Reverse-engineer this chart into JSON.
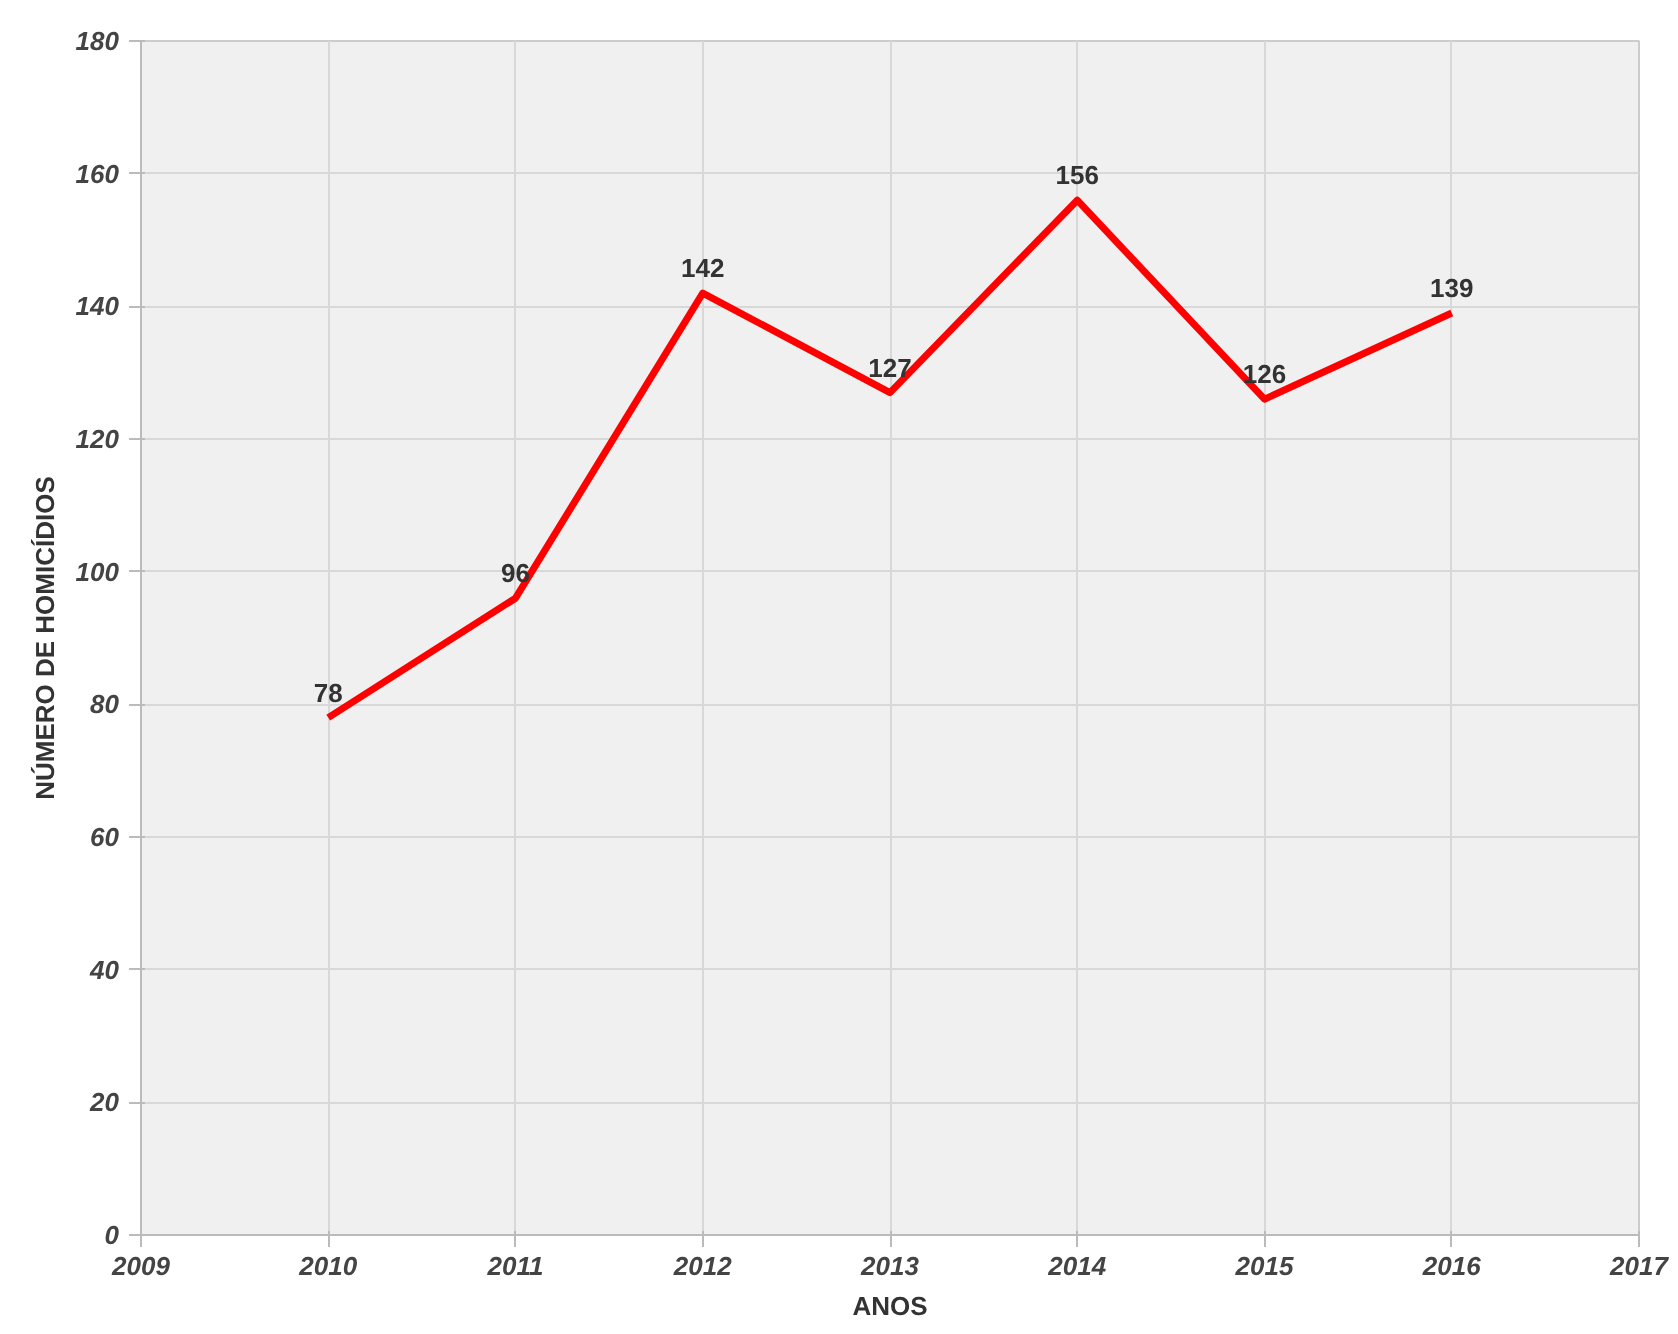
{
  "chart_data": {
    "type": "line",
    "xlabel": "ANOS",
    "ylabel": "NÚMERO DE HOMICÍDIOS",
    "x": [
      2010,
      2011,
      2012,
      2013,
      2014,
      2015,
      2016
    ],
    "series": [
      {
        "color": "#ff0000",
        "values": [
          78,
          96,
          142,
          127,
          156,
          126,
          139
        ]
      }
    ],
    "xlim": [
      2009,
      2017
    ],
    "xticks": [
      2009,
      2010,
      2011,
      2012,
      2013,
      2014,
      2015,
      2016,
      2017
    ],
    "ylim": [
      0,
      180
    ],
    "yticks": [
      0,
      20,
      40,
      60,
      80,
      100,
      120,
      140,
      160,
      180
    ],
    "grid": true,
    "data_labels": true,
    "marker": "none",
    "line_style": "solid"
  }
}
